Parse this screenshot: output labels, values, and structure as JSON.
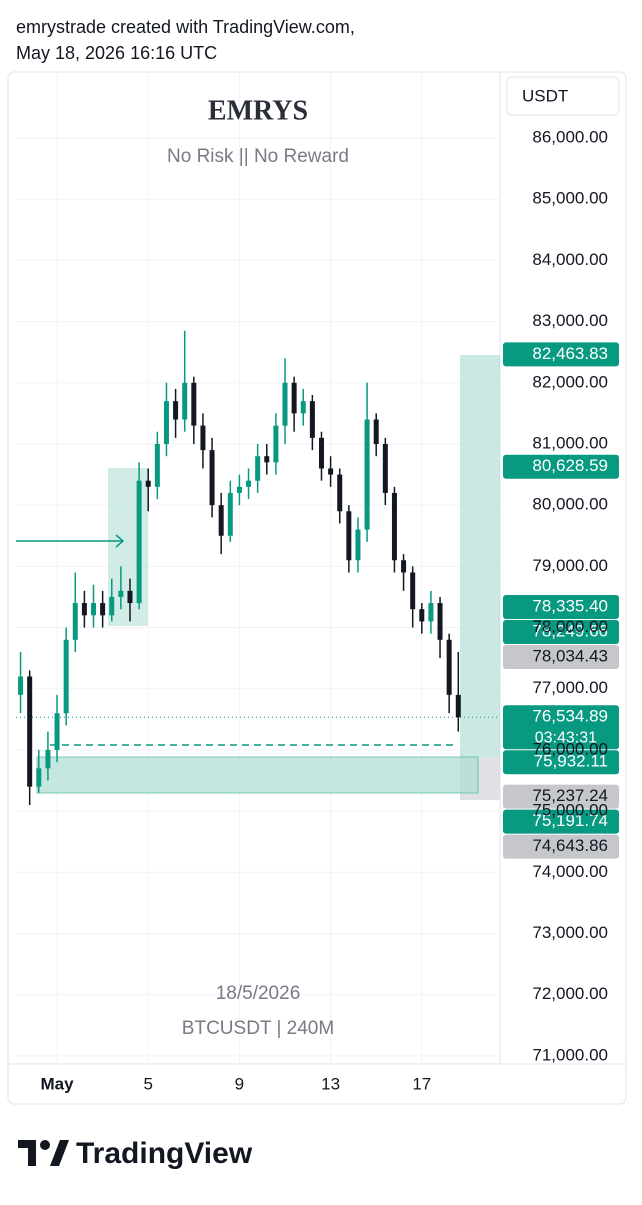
{
  "header": {
    "line1": "emrystrade created with TradingView.com,",
    "line2": "May 18, 2026 16:16 UTC"
  },
  "chart_data": {
    "type": "candlestick",
    "title": "EMRYS",
    "subtitle": "No Risk || No Reward",
    "watermark": [
      "18/5/2026",
      "BTCUSDT | 240M"
    ],
    "currency": "USDT",
    "x": [
      -0.6,
      -0.2,
      0.2,
      0.6,
      1.0,
      1.4,
      1.8,
      2.2,
      2.6,
      3.0,
      3.4,
      3.8,
      4.2,
      4.6,
      5.0,
      5.4,
      5.8,
      6.2,
      6.6,
      7.0,
      7.4,
      7.8,
      8.2,
      8.6,
      9.0,
      9.4,
      9.8,
      10.2,
      10.6,
      11.0,
      11.4,
      11.8,
      12.2,
      12.6,
      13.0,
      13.4,
      13.8,
      14.2,
      14.6,
      15.0,
      15.4,
      15.8,
      16.2,
      16.6,
      17.0,
      17.4,
      17.8,
      18.2,
      18.6
    ],
    "open": [
      76900,
      77200,
      75400,
      75700,
      76000,
      76600,
      77800,
      78400,
      78200,
      78400,
      78200,
      78500,
      78600,
      78400,
      80400,
      80300,
      81000,
      81700,
      81400,
      82000,
      81300,
      80900,
      80000,
      79500,
      80200,
      80300,
      80400,
      80800,
      80700,
      81300,
      82000,
      81500,
      81700,
      81100,
      80600,
      80500,
      79900,
      79100,
      79600,
      81400,
      81000,
      80200,
      79100,
      78900,
      78300,
      78100,
      78400,
      77800,
      76900
    ],
    "high": [
      77600,
      77300,
      76000,
      76300,
      76900,
      78000,
      78900,
      78600,
      78700,
      78600,
      78800,
      79000,
      78800,
      80700,
      80600,
      81200,
      82000,
      81900,
      82850,
      82100,
      81500,
      81100,
      80200,
      80400,
      80500,
      80600,
      81000,
      81000,
      81500,
      82400,
      82100,
      81900,
      81800,
      81200,
      80800,
      80600,
      80000,
      79800,
      82000,
      81500,
      81100,
      80300,
      79200,
      79000,
      78400,
      78600,
      78500,
      77900,
      77600
    ],
    "low": [
      76600,
      75100,
      75300,
      75500,
      75800,
      76400,
      77600,
      78000,
      78000,
      78000,
      78100,
      78300,
      78100,
      78300,
      79900,
      80100,
      80800,
      81100,
      81200,
      81000,
      80600,
      79800,
      79200,
      79400,
      80000,
      80100,
      80200,
      80500,
      80500,
      81000,
      81200,
      81300,
      80900,
      80400,
      80300,
      79700,
      78900,
      78900,
      79400,
      80800,
      80000,
      78900,
      78600,
      78000,
      77900,
      77900,
      77500,
      76600,
      76300
    ],
    "close": [
      77200,
      75400,
      75700,
      76000,
      76600,
      77800,
      78400,
      78200,
      78400,
      78200,
      78500,
      78600,
      78400,
      80400,
      80300,
      81000,
      81700,
      81400,
      82000,
      81300,
      80900,
      80000,
      79500,
      80200,
      80300,
      80400,
      80800,
      80700,
      81300,
      82000,
      81500,
      81700,
      81100,
      80600,
      80500,
      79900,
      79100,
      79600,
      81400,
      81000,
      80200,
      79100,
      78900,
      78300,
      78100,
      78400,
      77800,
      76900,
      76534.89
    ],
    "up_color": "#089981",
    "down_color": "#131722",
    "xlim": [
      -0.8,
      20.43
    ],
    "xticks": [
      {
        "value": 1,
        "label": "May"
      },
      5,
      9,
      13,
      17
    ],
    "ylim": [
      70900,
      87030
    ],
    "yticks": [
      {
        "value": 71000,
        "label": "71,000.00"
      },
      {
        "value": 72000,
        "label": "72,000.00"
      },
      {
        "value": 73000,
        "label": "73,000.00"
      },
      {
        "value": 74000,
        "label": "74,000.00"
      },
      {
        "value": 75000,
        "label": "75,000.00"
      },
      {
        "value": 76000,
        "label": "76,000.00"
      },
      {
        "value": 77000,
        "label": "77,000.00"
      },
      {
        "value": 78000,
        "label": "78,000.00"
      },
      {
        "value": 79000,
        "label": "79,000.00"
      },
      {
        "value": 80000,
        "label": "80,000.00"
      },
      {
        "value": 81000,
        "label": "81,000.00"
      },
      {
        "value": 82000,
        "label": "82,000.00"
      },
      {
        "value": 83000,
        "label": "83,000.00"
      },
      {
        "value": 84000,
        "label": "84,000.00"
      },
      {
        "value": 85000,
        "label": "85,000.00"
      },
      {
        "value": 86000,
        "label": "86,000.00"
      }
    ],
    "grid": true,
    "price_labels": [
      {
        "value": 82463.83,
        "label": "82,463.83",
        "color": "#089981",
        "text_color": "#ffffff"
      },
      {
        "value": 80628.59,
        "label": "80,628.59",
        "color": "#089981",
        "text_color": "#ffffff"
      },
      {
        "value": 78335.4,
        "label": "78,335.40",
        "color": "#089981",
        "text_color": "#ffffff"
      },
      {
        "value": 78249.66,
        "label": "78,249.66",
        "color": "#089981",
        "text_color": "#ffffff"
      },
      {
        "value": 78034.43,
        "label": "78,034.43",
        "color": "#c6c7cb",
        "text_color": "#131722"
      },
      {
        "value": 76534.89,
        "label": "76,534.89",
        "color": "#089981",
        "text_color": "#ffffff"
      },
      {
        "value": 75932.11,
        "label": "75,932.11",
        "color": "#089981",
        "text_color": "#ffffff"
      },
      {
        "value": 75237.24,
        "label": "75,237.24",
        "color": "#c6c7cb",
        "text_color": "#131722"
      },
      {
        "value": 75191.74,
        "label": "75,191.74",
        "color": "#089981",
        "text_color": "#ffffff"
      },
      {
        "value": 74643.86,
        "label": "74,643.86",
        "color": "#c6c7cb",
        "text_color": "#131722"
      }
    ],
    "countdown": "03:43:31"
  },
  "footer": {
    "brand": "TradingView"
  }
}
